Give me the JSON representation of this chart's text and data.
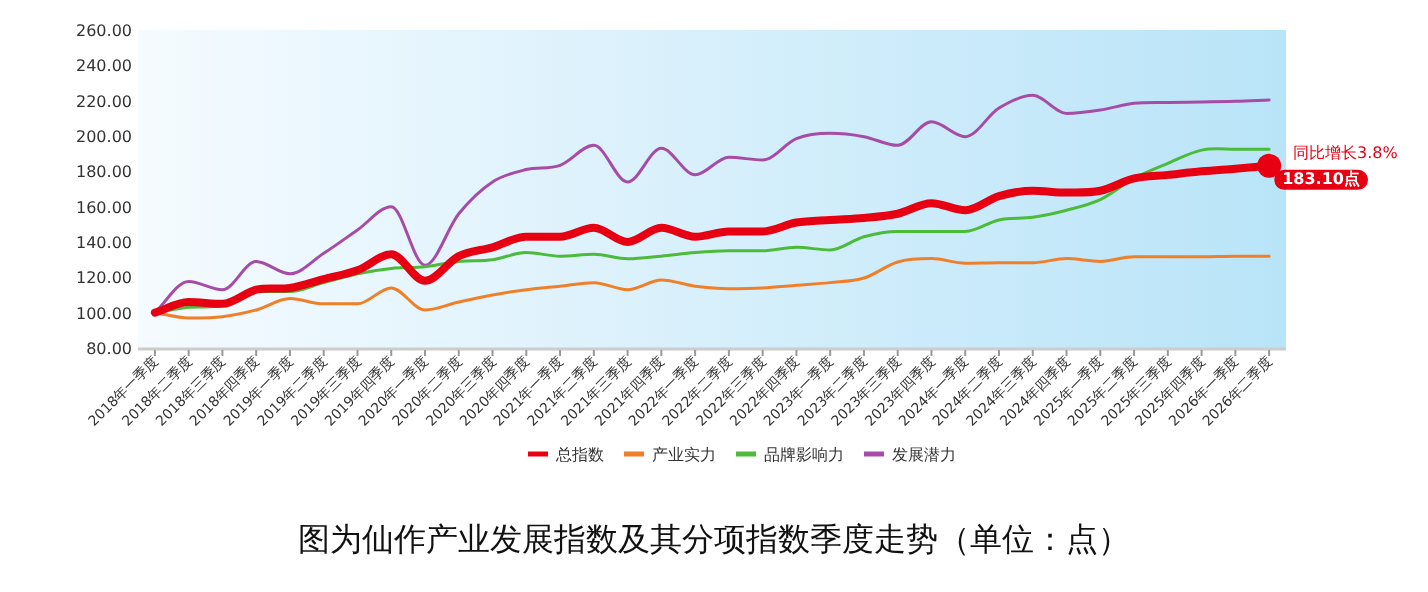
{
  "chart_data": {
    "type": "line",
    "title": "图为仙作产业发展指数及其分项指数季度走势（单位：点）",
    "categories": [
      "2018年一季度",
      "2018年二季度",
      "2018年三季度",
      "2018年四季度",
      "2019年一季度",
      "2019年二季度",
      "2019年三季度",
      "2019年四季度",
      "2020年一季度",
      "2020年二季度",
      "2020年三季度",
      "2020年四季度",
      "2021年一季度",
      "2021年二季度",
      "2021年三季度",
      "2021年四季度",
      "2022年一季度",
      "2022年二季度",
      "2022年三季度",
      "2022年四季度",
      "2023年一季度",
      "2023年二季度",
      "2023年三季度",
      "2023年四季度",
      "2024年一季度",
      "2024年二季度",
      "2024年三季度",
      "2024年四季度",
      "2025年一季度",
      "2025年二季度",
      "2025年三季度",
      "2025年四季度",
      "2026年一季度",
      "2026年二季度"
    ],
    "series": [
      {
        "name": "总指数",
        "color": "#e60012",
        "values": [
          100,
          106,
          105,
          113,
          114,
          119,
          124,
          133,
          118,
          132,
          137,
          143,
          143,
          148,
          140,
          148,
          143,
          146,
          146,
          151,
          152.5,
          153.6,
          156,
          162,
          158,
          166,
          169,
          168,
          169,
          176,
          178,
          180,
          181.5,
          183.1
        ]
      },
      {
        "name": "产业实力",
        "color": "#f07f2a",
        "values": [
          100,
          97,
          97.7,
          101.5,
          108,
          105,
          105,
          114,
          101.5,
          106,
          110,
          113,
          115,
          117,
          113,
          118.5,
          115,
          113.6,
          114,
          115.5,
          117,
          119.6,
          128.7,
          130.6,
          128,
          128.3,
          128.3,
          130.6,
          129,
          131.7,
          131.7,
          131.7,
          132,
          132
        ]
      },
      {
        "name": "品牌影响力",
        "color": "#4cbb3a",
        "values": [
          100,
          103,
          104,
          112,
          112,
          117,
          122,
          125,
          126,
          129,
          130,
          134,
          132,
          133,
          130.5,
          132,
          134,
          135,
          135,
          137,
          135.5,
          143,
          146,
          146,
          146,
          152.5,
          154,
          158,
          164,
          176,
          184.5,
          192,
          192.5,
          192.5
        ]
      },
      {
        "name": "发展潜力",
        "color": "#a64ca6",
        "values": [
          100,
          117.7,
          113,
          129,
          122,
          133.6,
          146.8,
          160,
          126.8,
          156,
          174,
          181,
          183.4,
          194.7,
          174,
          193,
          178,
          188,
          186.4,
          198.5,
          201.5,
          199.6,
          194.7,
          208,
          199.6,
          215.8,
          223,
          212.8,
          214.7,
          218.5,
          219,
          219.2,
          219.6,
          220.4
        ]
      }
    ],
    "ylim": [
      80,
      260
    ],
    "yticks": [
      {
        "value": 80,
        "label": "80.00"
      },
      {
        "value": 100,
        "label": "100.00"
      },
      {
        "value": 120,
        "label": "120.00"
      },
      {
        "value": 140,
        "label": "140.00"
      },
      {
        "value": 160,
        "label": "160.00"
      },
      {
        "value": 180,
        "label": "180.00"
      },
      {
        "value": 200,
        "label": "200.00"
      },
      {
        "value": 220,
        "label": "220.00"
      },
      {
        "value": 240,
        "label": "240.00"
      },
      {
        "value": 260,
        "label": "260.00"
      }
    ],
    "annotations": [
      {
        "text": "同比增长3.8%",
        "x": "2026年二季度",
        "y": 183.1
      },
      {
        "text": "183.10点",
        "x": "2026年二季度",
        "y": 183.1
      }
    ],
    "grid": false,
    "legend": "bottom",
    "marker": "none",
    "line_style": "solid"
  }
}
